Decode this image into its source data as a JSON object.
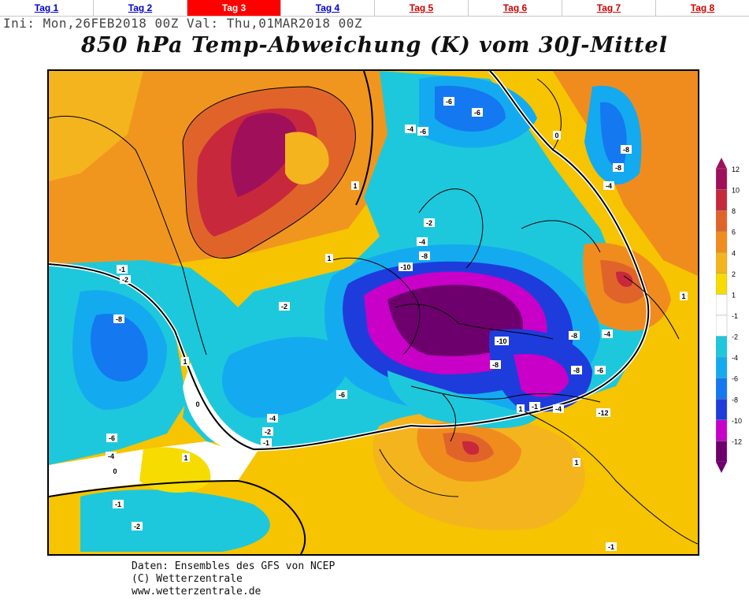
{
  "tabs": [
    {
      "label": "Tag 1"
    },
    {
      "label": "Tag 2"
    },
    {
      "label": "Tag 3"
    },
    {
      "label": "Tag 4"
    },
    {
      "label": "Tag 5"
    },
    {
      "label": "Tag 6"
    },
    {
      "label": "Tag 7"
    },
    {
      "label": "Tag 8"
    }
  ],
  "active_tab": "Tag 3",
  "init_line": "Ini: Mon,26FEB2018 00Z Val: Thu,01MAR2018 00Z",
  "title": "850 hPa Temp-Abweichung (K) vom 30J-Mittel",
  "map_labels": {
    "l1": "-6",
    "l2": "-6",
    "l3": "-4",
    "l4": "-6",
    "l5": "-8",
    "l6": "-8",
    "l7": "-4",
    "l8": "-4",
    "l9": "-10",
    "l10": "-8",
    "l11": "-2",
    "l12": "-8",
    "l13": "-6",
    "l14": "-4",
    "l15": "-6",
    "l16": "-10",
    "l17": "-8",
    "l18": "-8",
    "l19": "-6",
    "l20": "-4",
    "l21": "-12",
    "l22": "1",
    "l23": "1",
    "l24": "-1",
    "l25": "-2",
    "l26": "0",
    "l27": "1",
    "l28": "-4",
    "l29": "-2",
    "l30": "-1",
    "l31": "1",
    "l32": "0",
    "l33": "-2",
    "l34": "-1",
    "l35": "1",
    "l36": "-1",
    "l37": "1",
    "l38": "-2",
    "l39": "0",
    "l40": "-1",
    "l41": "1",
    "l42": "-4",
    "l43": "-8"
  },
  "colorbar_labels": [
    "12",
    "10",
    "8",
    "6",
    "4",
    "2",
    "1",
    "-1",
    "-2",
    "-4",
    "-6",
    "-8",
    "-10",
    "-12"
  ],
  "colorbar_colors": [
    "#a0105a",
    "#c8283c",
    "#e0642a",
    "#f08c1e",
    "#f4b41e",
    "#f6dc00",
    "#ffffff",
    "#ffffff",
    "#1ec8dc",
    "#14aaf0",
    "#1478f0",
    "#1e3cdc",
    "#c800c8",
    "#6e006e"
  ],
  "footer": {
    "line1": "Daten: Ensembles des GFS von NCEP",
    "line2": "(C) Wetterzentrale",
    "line3": "www.wetterzentrale.de"
  }
}
